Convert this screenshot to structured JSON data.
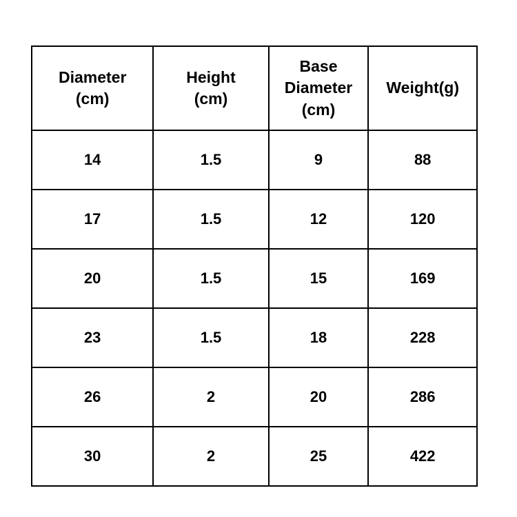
{
  "table": {
    "headers": [
      "Diameter\n(cm)",
      "Height\n(cm)",
      "Base\nDiameter\n(cm)",
      "Weight(g)"
    ],
    "rows": [
      [
        "14",
        "1.5",
        "9",
        "88"
      ],
      [
        "17",
        "1.5",
        "12",
        "120"
      ],
      [
        "20",
        "1.5",
        "15",
        "169"
      ],
      [
        "23",
        "1.5",
        "18",
        "228"
      ],
      [
        "26",
        "2",
        "20",
        "286"
      ],
      [
        "30",
        "2",
        "25",
        "422"
      ]
    ]
  },
  "chart_data": {
    "type": "table",
    "title": "",
    "columns": [
      "Diameter (cm)",
      "Height (cm)",
      "Base Diameter (cm)",
      "Weight (g)"
    ],
    "series": [
      {
        "name": "Diameter (cm)",
        "values": [
          14,
          17,
          20,
          23,
          26,
          30
        ]
      },
      {
        "name": "Height (cm)",
        "values": [
          1.5,
          1.5,
          1.5,
          1.5,
          2,
          2
        ]
      },
      {
        "name": "Base Diameter (cm)",
        "values": [
          9,
          12,
          15,
          18,
          20,
          25
        ]
      },
      {
        "name": "Weight (g)",
        "values": [
          88,
          120,
          169,
          228,
          286,
          422
        ]
      }
    ]
  },
  "colors": {
    "border": "#000000",
    "text": "#000000",
    "background": "#ffffff"
  }
}
